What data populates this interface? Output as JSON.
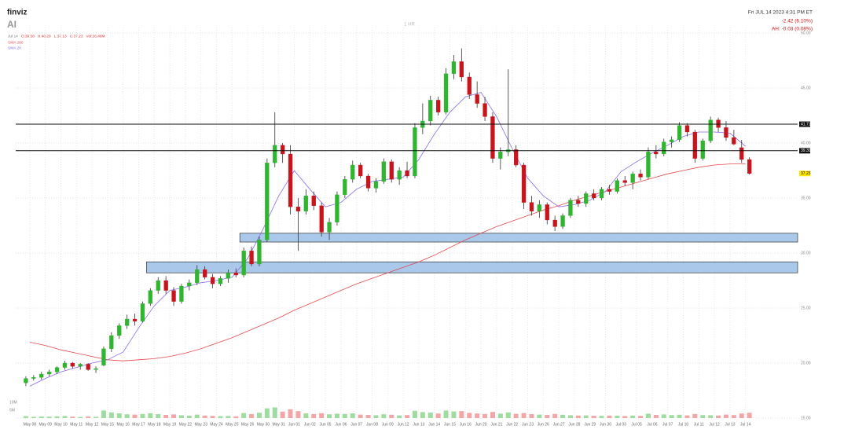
{
  "header": {
    "logo": "finviz",
    "ticker": "AI",
    "timeframe": "1 HR",
    "datetime": "Fri JUL 14 2023 4:31 PM ET",
    "change": "-2.42 (6.10%)",
    "after_hours": "AH: -0.03 (0.08%)"
  },
  "info": [
    "Jul 14",
    "O:39.58",
    "H:40.29",
    "L:37.13",
    "C:37.23",
    "Vol:26.48M"
  ],
  "chart_data": {
    "type": "candlestick",
    "categories": [
      "May 08",
      "May 09",
      "May 10",
      "May 11",
      "May 12",
      "May 15",
      "May 16",
      "May 17",
      "May 18",
      "May 19",
      "May 22",
      "May 23",
      "May 24",
      "May 25",
      "May 26",
      "May 30",
      "May 31",
      "Jun 01",
      "Jun 02",
      "Jun 05",
      "Jun 06",
      "Jun 07",
      "Jun 08",
      "Jun 09",
      "Jun 12",
      "Jun 13",
      "Jun 14",
      "Jun 15",
      "Jun 16",
      "Jun 20",
      "Jun 21",
      "Jun 22",
      "Jun 23",
      "Jun 26",
      "Jun 27",
      "Jun 28",
      "Jun 29",
      "Jun 30",
      "Jul 03",
      "Jul 05",
      "Jul 06",
      "Jul 07",
      "Jul 10",
      "Jul 11",
      "Jul 12",
      "Jul 13",
      "Jul 14"
    ],
    "ohlc": [
      [
        18.2,
        18.8,
        17.9,
        18.6
      ],
      [
        18.6,
        18.9,
        18.4,
        18.7
      ],
      [
        18.7,
        19.2,
        18.5,
        19.0
      ],
      [
        19.0,
        19.4,
        18.8,
        19.2
      ],
      [
        19.2,
        19.7,
        19.0,
        19.6
      ],
      [
        19.6,
        20.2,
        19.4,
        20.0
      ],
      [
        20.0,
        20.1,
        19.5,
        19.7
      ],
      [
        19.7,
        20.0,
        19.4,
        19.9
      ],
      [
        19.9,
        20.0,
        19.3,
        19.4
      ],
      [
        19.4,
        19.7,
        19.1,
        19.5
      ],
      [
        19.8,
        21.5,
        19.7,
        21.3
      ],
      [
        21.3,
        22.8,
        21.0,
        22.5
      ],
      [
        22.5,
        23.6,
        22.2,
        23.4
      ],
      [
        23.4,
        24.4,
        23.1,
        24.0
      ],
      [
        24.0,
        24.5,
        23.4,
        23.8
      ],
      [
        23.8,
        25.6,
        23.7,
        25.4
      ],
      [
        25.4,
        26.8,
        25.2,
        26.6
      ],
      [
        26.6,
        27.8,
        26.3,
        27.5
      ],
      [
        27.5,
        27.9,
        26.3,
        26.6
      ],
      [
        26.6,
        26.9,
        25.2,
        25.6
      ],
      [
        25.6,
        27.2,
        25.4,
        27.0
      ],
      [
        27.0,
        27.6,
        26.6,
        27.3
      ],
      [
        27.3,
        28.9,
        27.1,
        28.5
      ],
      [
        28.5,
        28.8,
        27.6,
        27.8
      ],
      [
        27.8,
        28.1,
        26.8,
        27.2
      ],
      [
        27.2,
        27.9,
        27.0,
        27.7
      ],
      [
        27.7,
        28.5,
        27.3,
        28.2
      ],
      [
        28.2,
        28.6,
        27.8,
        28.0
      ],
      [
        28.0,
        30.5,
        27.8,
        30.2
      ],
      [
        30.2,
        30.6,
        28.8,
        29.0
      ],
      [
        29.0,
        31.5,
        28.8,
        31.2
      ],
      [
        31.2,
        38.6,
        31.0,
        38.2
      ],
      [
        38.2,
        42.8,
        37.8,
        39.8
      ],
      [
        39.8,
        40.0,
        38.2,
        39.0
      ],
      [
        39.0,
        39.8,
        33.5,
        34.2
      ],
      [
        34.2,
        35.0,
        30.2,
        33.8
      ],
      [
        33.8,
        35.8,
        33.5,
        35.2
      ],
      [
        35.2,
        35.6,
        33.9,
        34.3
      ],
      [
        34.3,
        34.6,
        31.5,
        31.9
      ],
      [
        31.9,
        33.2,
        31.2,
        32.8
      ],
      [
        32.8,
        35.6,
        32.5,
        35.3
      ],
      [
        35.3,
        37.0,
        35.0,
        36.7
      ],
      [
        36.7,
        38.4,
        36.4,
        38.0
      ],
      [
        38.0,
        38.2,
        36.8,
        37.0
      ],
      [
        37.0,
        37.2,
        35.6,
        35.9
      ],
      [
        35.9,
        36.8,
        35.5,
        36.5
      ],
      [
        36.5,
        38.6,
        36.3,
        38.3
      ],
      [
        38.3,
        38.5,
        36.4,
        36.7
      ],
      [
        36.7,
        37.8,
        36.2,
        37.5
      ],
      [
        37.5,
        38.3,
        36.8,
        37.0
      ],
      [
        37.0,
        41.8,
        36.8,
        41.4
      ],
      [
        41.4,
        43.6,
        40.8,
        42.0
      ],
      [
        42.0,
        44.3,
        41.6,
        43.9
      ],
      [
        43.9,
        44.2,
        42.5,
        42.8
      ],
      [
        42.8,
        46.8,
        42.6,
        46.3
      ],
      [
        46.3,
        48.0,
        45.8,
        47.4
      ],
      [
        47.4,
        48.6,
        45.6,
        46.0
      ],
      [
        46.0,
        46.4,
        44.0,
        44.4
      ],
      [
        44.4,
        45.6,
        43.2,
        43.6
      ],
      [
        43.6,
        44.2,
        42.0,
        42.4
      ],
      [
        42.4,
        42.8,
        38.2,
        38.6
      ],
      [
        38.6,
        39.6,
        37.6,
        39.2
      ],
      [
        39.2,
        46.7,
        38.8,
        39.4
      ],
      [
        39.4,
        39.8,
        37.8,
        38.0
      ],
      [
        38.0,
        38.2,
        34.0,
        34.6
      ],
      [
        34.6,
        35.2,
        33.4,
        33.8
      ],
      [
        33.8,
        34.8,
        33.2,
        34.4
      ],
      [
        34.4,
        34.6,
        32.6,
        33.0
      ],
      [
        33.0,
        33.4,
        32.0,
        32.4
      ],
      [
        32.4,
        33.6,
        32.2,
        33.4
      ],
      [
        33.4,
        35.0,
        33.2,
        34.8
      ],
      [
        34.8,
        35.2,
        34.2,
        34.5
      ],
      [
        34.5,
        35.6,
        34.2,
        35.4
      ],
      [
        35.4,
        35.8,
        34.8,
        35.0
      ],
      [
        35.0,
        36.0,
        34.8,
        35.8
      ],
      [
        35.8,
        36.2,
        35.3,
        35.6
      ],
      [
        35.6,
        36.8,
        35.4,
        36.6
      ],
      [
        36.6,
        37.0,
        36.1,
        36.4
      ],
      [
        36.4,
        37.4,
        35.8,
        37.2
      ],
      [
        37.2,
        37.6,
        36.6,
        36.9
      ],
      [
        36.9,
        39.6,
        36.7,
        39.2
      ],
      [
        39.2,
        39.8,
        38.6,
        39.0
      ],
      [
        39.0,
        40.4,
        38.8,
        40.1
      ],
      [
        40.1,
        40.6,
        39.6,
        40.3
      ],
      [
        40.3,
        41.9,
        40.1,
        41.6
      ],
      [
        41.6,
        41.8,
        40.6,
        41.0
      ],
      [
        41.0,
        41.2,
        38.2,
        38.6
      ],
      [
        38.6,
        40.4,
        38.4,
        40.2
      ],
      [
        40.2,
        42.4,
        40.0,
        42.1
      ],
      [
        42.1,
        42.3,
        41.0,
        41.4
      ],
      [
        41.4,
        42.0,
        40.2,
        40.5
      ],
      [
        40.5,
        41.2,
        39.8,
        39.9
      ],
      [
        39.58,
        40.29,
        38.2,
        38.5
      ],
      [
        38.5,
        38.7,
        37.13,
        37.23
      ]
    ],
    "volume": [
      1.2,
      0.8,
      1.0,
      0.9,
      1.1,
      1.3,
      0.9,
      0.7,
      1.0,
      0.8,
      4.8,
      3.6,
      3.0,
      2.4,
      2.2,
      2.6,
      3.1,
      2.5,
      2.0,
      2.3,
      1.8,
      1.5,
      2.2,
      1.6,
      1.4,
      1.2,
      1.3,
      1.1,
      3.2,
      2.5,
      3.4,
      6.2,
      6.8,
      4.1,
      5.6,
      4.4,
      3.0,
      2.6,
      3.1,
      2.4,
      2.8,
      2.6,
      3.0,
      2.2,
      2.0,
      1.8,
      2.4,
      2.1,
      1.7,
      1.9,
      4.6,
      3.8,
      3.5,
      2.9,
      4.8,
      4.2,
      4.4,
      3.3,
      2.9,
      2.6,
      3.9,
      2.8,
      3.6,
      2.7,
      3.2,
      2.5,
      2.2,
      2.0,
      2.6,
      2.1,
      1.8,
      1.6,
      1.7,
      1.5,
      1.4,
      1.6,
      1.5,
      1.3,
      1.6,
      1.4,
      2.8,
      2.0,
      2.3,
      1.9,
      2.1,
      1.7,
      2.6,
      1.9,
      1.8,
      1.6,
      2.2,
      1.9,
      2.9,
      3.4
    ],
    "volume_lim": [
      0,
      10
    ],
    "volume_ticks": [
      {
        "value": 5,
        "label": "5M"
      },
      {
        "value": 10,
        "label": "10M"
      }
    ],
    "up_color": "#2fb52f",
    "down_color": "#c8141c",
    "series": [
      {
        "name": "SMA 200",
        "color": "#e5484d",
        "values": [
          21.9,
          21.6,
          21.2,
          20.9,
          20.6,
          20.3,
          20.2,
          20.3,
          20.4,
          20.6,
          20.9,
          21.3,
          21.8,
          22.3,
          22.9,
          23.5,
          24.1,
          24.8,
          25.4,
          26.0,
          26.6,
          27.2,
          27.7,
          28.2,
          28.7,
          29.2,
          29.8,
          30.5,
          31.2,
          31.8,
          32.4,
          32.9,
          33.4,
          33.9,
          34.3,
          34.8,
          35.2,
          35.6,
          36.0,
          36.4,
          36.8,
          37.2,
          37.5,
          37.8,
          38.0,
          38.1,
          38.1
        ]
      },
      {
        "name": "SMA 20",
        "color": "#8a6be8",
        "values": [
          17.9,
          18.6,
          19.2,
          19.6,
          20.0,
          20.3,
          21.0,
          23.2,
          25.2,
          26.6,
          26.9,
          27.3,
          27.5,
          27.8,
          29.5,
          32.2,
          35.2,
          37.5,
          35.8,
          34.2,
          34.6,
          35.8,
          36.5,
          36.7,
          36.9,
          38.5,
          40.8,
          42.8,
          44.2,
          44.6,
          42.4,
          39.5,
          36.8,
          35.2,
          34.2,
          34.4,
          34.8,
          35.6,
          37.4,
          38.3,
          39.1,
          39.8,
          40.6,
          41.0,
          41.0,
          40.9,
          39.7
        ]
      }
    ],
    "hlines": [
      {
        "value": 41.71,
        "label": "41.71"
      },
      {
        "value": 39.3,
        "label": "39.30"
      }
    ],
    "last_price": {
      "value": 37.23,
      "label": "37.23"
    },
    "zones": [
      {
        "low": 31.0,
        "high": 31.8,
        "from": "May 26"
      },
      {
        "low": 28.2,
        "high": 29.2,
        "from": "May 18"
      }
    ],
    "ylim": [
      15,
      50.5
    ],
    "yticks": [
      {
        "value": 15,
        "label": "15.00"
      },
      {
        "value": 20,
        "label": "20.00"
      },
      {
        "value": 25,
        "label": "25.00"
      },
      {
        "value": 30,
        "label": "30.00"
      },
      {
        "value": 35,
        "label": "35.00"
      },
      {
        "value": 40,
        "label": "40.00"
      },
      {
        "value": 45,
        "label": "45.00"
      },
      {
        "value": 50,
        "label": "50.00"
      }
    ],
    "grid": true
  }
}
